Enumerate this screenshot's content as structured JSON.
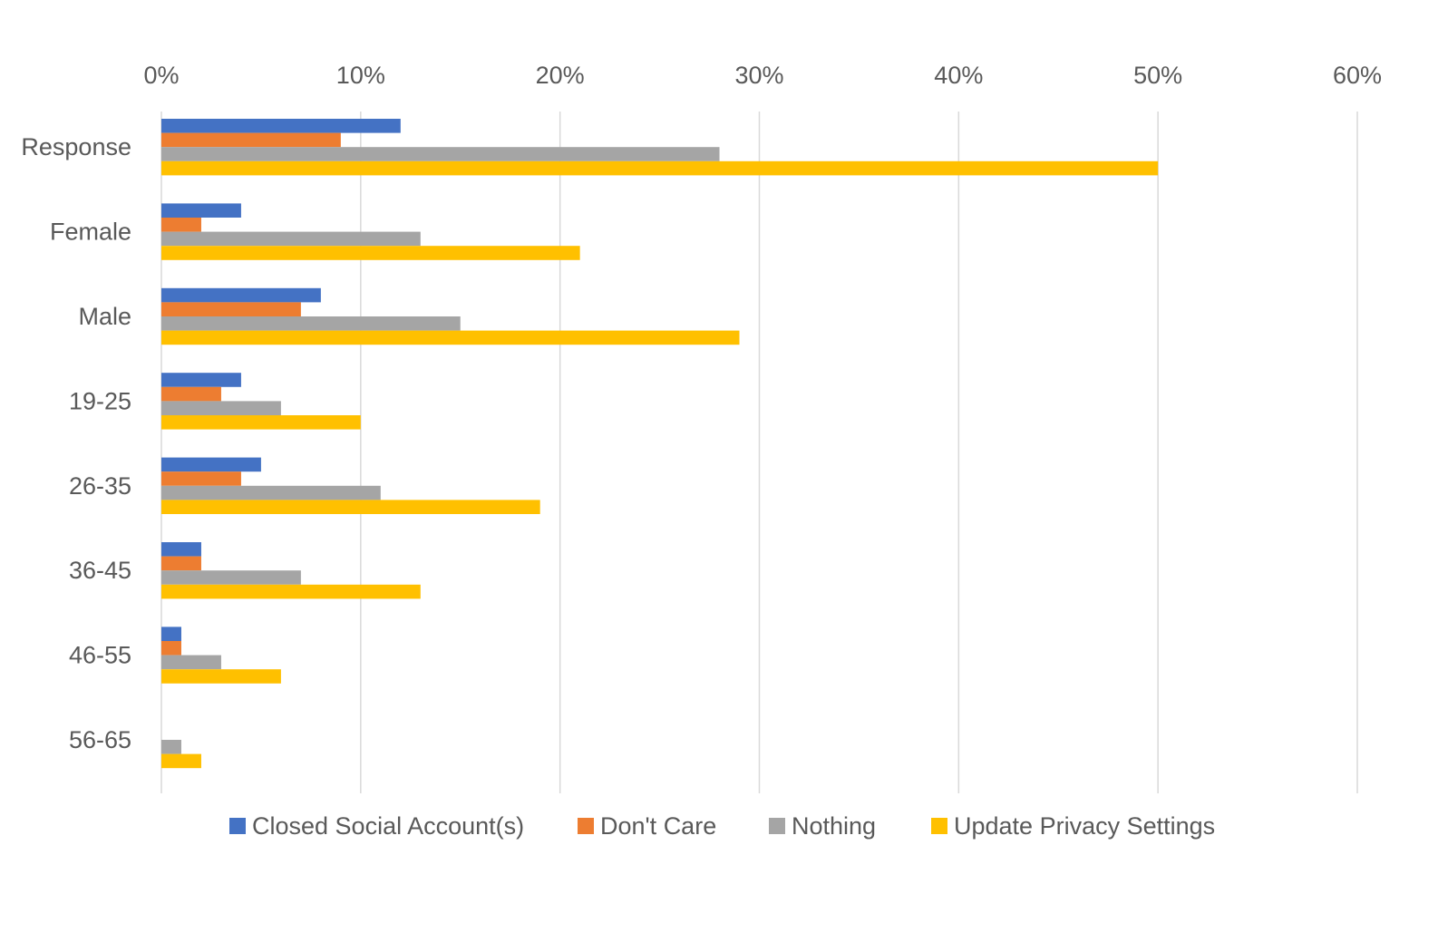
{
  "chart_data": {
    "type": "bar",
    "orientation": "horizontal",
    "title": "",
    "xlabel": "",
    "ylabel": "",
    "x_axis_position": "top",
    "xlim": [
      0,
      0.6
    ],
    "x_ticks": [
      "0%",
      "10%",
      "20%",
      "30%",
      "40%",
      "50%",
      "60%"
    ],
    "grid": true,
    "legend_position": "bottom",
    "categories": [
      "Response",
      "Female",
      "Male",
      "19-25",
      "26-35",
      "36-45",
      "46-55",
      "56-65"
    ],
    "series": [
      {
        "name": "Closed Social Account(s)",
        "color": "#4472C4",
        "values": [
          0.12,
          0.04,
          0.08,
          0.04,
          0.05,
          0.02,
          0.01,
          0.0
        ]
      },
      {
        "name": "Don't Care",
        "color": "#ED7D31",
        "values": [
          0.09,
          0.02,
          0.07,
          0.03,
          0.04,
          0.02,
          0.01,
          0.0
        ]
      },
      {
        "name": "Nothing",
        "color": "#A5A5A5",
        "values": [
          0.28,
          0.13,
          0.15,
          0.06,
          0.11,
          0.07,
          0.03,
          0.01
        ]
      },
      {
        "name": "Update Privacy Settings",
        "color": "#FFC000",
        "values": [
          0.5,
          0.21,
          0.29,
          0.1,
          0.19,
          0.13,
          0.06,
          0.02
        ]
      }
    ]
  }
}
